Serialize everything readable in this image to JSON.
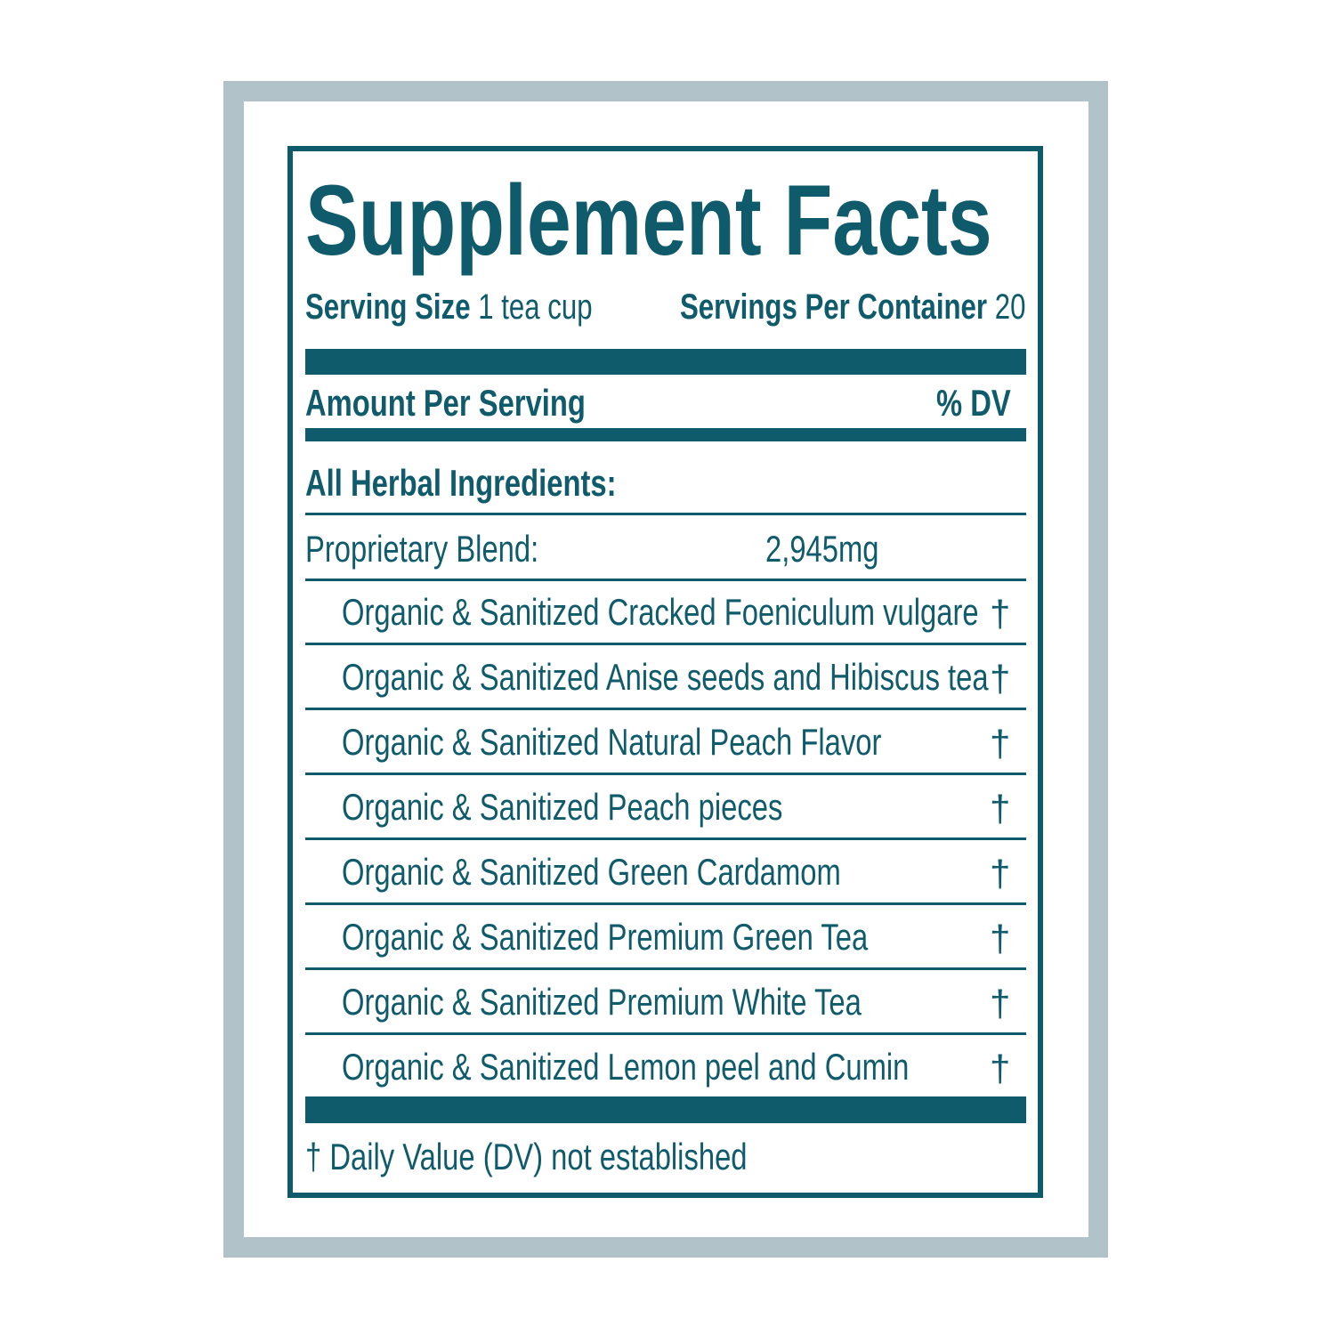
{
  "label": {
    "title": "Supplement Facts",
    "serving_size_label": "Serving Size",
    "serving_size_value": "1 tea cup",
    "servings_per_container_label": "Servings Per Container",
    "servings_per_container_value": "20",
    "amount_per_serving": "Amount Per Serving",
    "dv_header": "% DV",
    "section_heading": "All Herbal Ingredients:",
    "blend_label": "Proprietary Blend:",
    "blend_amount": "2,945mg",
    "ingredients": [
      {
        "name": "Organic & Sanitized Cracked Foeniculum vulgare",
        "dv": "†"
      },
      {
        "name": "Organic & Sanitized Anise seeds and Hibiscus tea",
        "dv": "†"
      },
      {
        "name": "Organic & Sanitized Natural Peach Flavor",
        "dv": "†"
      },
      {
        "name": "Organic & Sanitized Peach pieces",
        "dv": "†"
      },
      {
        "name": "Organic & Sanitized Green Cardamom",
        "dv": "†"
      },
      {
        "name": "Organic & Sanitized Premium Green Tea",
        "dv": "†"
      },
      {
        "name": "Organic & Sanitized Premium White Tea",
        "dv": "†"
      },
      {
        "name": "Organic & Sanitized Lemon peel and Cumin",
        "dv": "†"
      }
    ],
    "footnote": "† Daily Value (DV) not established"
  },
  "colors": {
    "primary": "#0f5a6b",
    "frame": "#b1c2c8"
  }
}
